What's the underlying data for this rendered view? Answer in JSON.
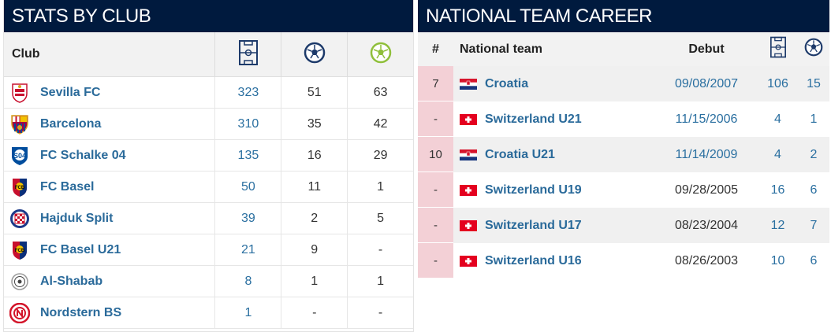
{
  "clubs_panel": {
    "title": "STATS BY CLUB",
    "column_header": "Club",
    "column_icons": [
      "pitch-icon",
      "ball-icon",
      "ball-green-icon"
    ],
    "rows": [
      {
        "name": "Sevilla FC",
        "logo": "sevilla-crest-icon",
        "apps": "323",
        "goals": "51",
        "assists": "63"
      },
      {
        "name": "Barcelona",
        "logo": "barcelona-crest-icon",
        "apps": "310",
        "goals": "35",
        "assists": "42"
      },
      {
        "name": "FC Schalke 04",
        "logo": "schalke-crest-icon",
        "apps": "135",
        "goals": "16",
        "assists": "29"
      },
      {
        "name": "FC Basel",
        "logo": "basel-crest-icon",
        "apps": "50",
        "goals": "11",
        "assists": "1"
      },
      {
        "name": "Hajduk Split",
        "logo": "hajduk-crest-icon",
        "apps": "39",
        "goals": "2",
        "assists": "5"
      },
      {
        "name": "FC Basel U21",
        "logo": "basel-crest-icon",
        "apps": "21",
        "goals": "9",
        "assists": "-"
      },
      {
        "name": "Al-Shabab",
        "logo": "alshabab-crest-icon",
        "apps": "8",
        "goals": "1",
        "assists": "1"
      },
      {
        "name": "Nordstern BS",
        "logo": "nordstern-crest-icon",
        "apps": "1",
        "goals": "-",
        "assists": "-"
      }
    ]
  },
  "national_panel": {
    "title": "NATIONAL TEAM CAREER",
    "headers": {
      "number": "#",
      "team": "National team",
      "debut": "Debut"
    },
    "column_icons": [
      "pitch-icon",
      "ball-icon"
    ],
    "rows": [
      {
        "number": "7",
        "team": "Croatia",
        "flag": "croatia-flag-icon",
        "debut": "09/08/2007",
        "apps": "106",
        "goals": "15"
      },
      {
        "number": "-",
        "team": "Switzerland U21",
        "flag": "switzerland-flag-icon",
        "debut": "11/15/2006",
        "apps": "4",
        "goals": "1"
      },
      {
        "number": "10",
        "team": "Croatia U21",
        "flag": "croatia-flag-icon",
        "debut": "11/14/2009",
        "apps": "4",
        "goals": "2"
      },
      {
        "number": "-",
        "team": "Switzerland U19",
        "flag": "switzerland-flag-icon",
        "debut": "09/28/2005",
        "apps": "16",
        "goals": "6"
      },
      {
        "number": "-",
        "team": "Switzerland U17",
        "flag": "switzerland-flag-icon",
        "debut": "08/23/2004",
        "apps": "12",
        "goals": "7"
      },
      {
        "number": "-",
        "team": "Switzerland U16",
        "flag": "switzerland-flag-icon",
        "debut": "08/26/2003",
        "apps": "10",
        "goals": "6"
      }
    ]
  },
  "colors": {
    "header_bg": "#001a3e",
    "link": "#2a6fa0",
    "number_cell_bg": "#f3d0d6",
    "assist_icon": "#8fbf3a"
  }
}
